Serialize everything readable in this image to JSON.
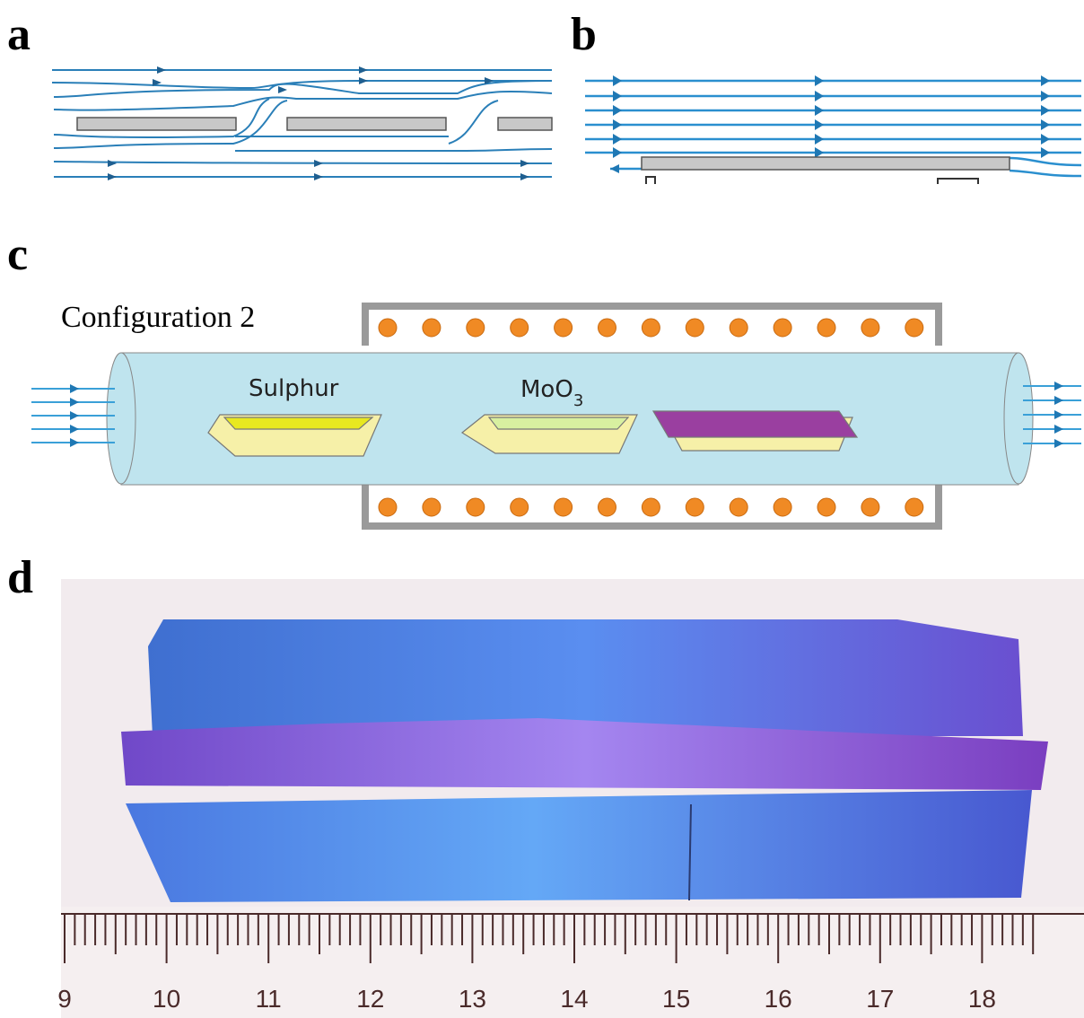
{
  "panels": {
    "a": {
      "label": "a"
    },
    "b": {
      "label": "b"
    },
    "c": {
      "label": "c",
      "configuration": "Configuration 2",
      "boats": {
        "sulphur": "Sulphur",
        "moo3": {
          "base": "MoO",
          "subscript": "3"
        }
      }
    },
    "d": {
      "label": "d",
      "ruler": {
        "labels": [
          "9",
          "10",
          "11",
          "12",
          "13",
          "14",
          "15",
          "16",
          "17",
          "18"
        ]
      }
    }
  }
}
